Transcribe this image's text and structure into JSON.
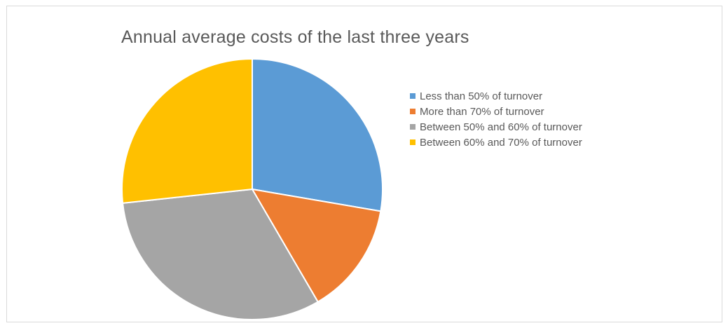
{
  "chart_data": {
    "type": "pie",
    "title": "Annual average costs of the last three years",
    "legend_position": "right",
    "categories": [
      "Less than 50% of turnover",
      "More than 70% of turnover",
      "Between 50% and 60% of turnover",
      "Between 60% and 70% of turnover"
    ],
    "values": [
      27.7,
      13.9,
      31.7,
      26.7
    ],
    "colors": [
      "#5B9BD5",
      "#ED7D31",
      "#A5A5A5",
      "#FFC000"
    ],
    "start_angle_deg": 0,
    "direction": "clockwise"
  }
}
